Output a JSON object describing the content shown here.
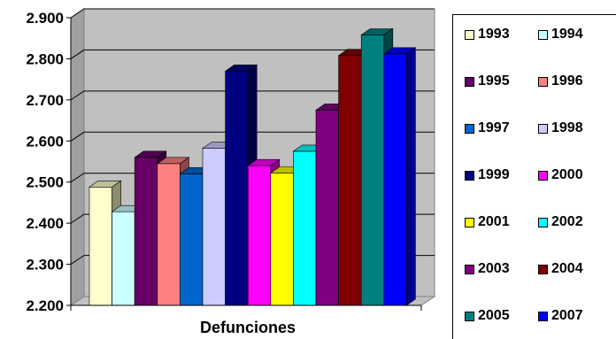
{
  "chart_data": {
    "type": "bar",
    "title": "",
    "xlabel": "Defunciones",
    "ylabel": "",
    "categories": [
      "Defunciones"
    ],
    "ylim": [
      2200,
      2900
    ],
    "y_ticks": [
      2200,
      2300,
      2400,
      2500,
      2600,
      2700,
      2800,
      2900
    ],
    "y_tick_labels": [
      "2.200",
      "2.300",
      "2.400",
      "2.500",
      "2.600",
      "2.700",
      "2.800",
      "2.900"
    ],
    "grid": true,
    "legend_position": "right",
    "series": [
      {
        "name": "1993",
        "values": [
          2488
        ],
        "color": "#FFFFCC"
      },
      {
        "name": "1994",
        "values": [
          2428
        ],
        "color": "#CCFFFF"
      },
      {
        "name": "1995",
        "values": [
          2560
        ],
        "color": "#660066"
      },
      {
        "name": "1996",
        "values": [
          2545
        ],
        "color": "#FF8080"
      },
      {
        "name": "1997",
        "values": [
          2520
        ],
        "color": "#0066CC"
      },
      {
        "name": "1998",
        "values": [
          2582
        ],
        "color": "#CCCCFF"
      },
      {
        "name": "1999",
        "values": [
          2770
        ],
        "color": "#000080"
      },
      {
        "name": "2000",
        "values": [
          2540
        ],
        "color": "#FF00FF"
      },
      {
        "name": "2001",
        "values": [
          2522
        ],
        "color": "#FFFF00"
      },
      {
        "name": "2002",
        "values": [
          2575
        ],
        "color": "#00FFFF"
      },
      {
        "name": "2003",
        "values": [
          2675
        ],
        "color": "#800080"
      },
      {
        "name": "2004",
        "values": [
          2808
        ],
        "color": "#800000"
      },
      {
        "name": "2005",
        "values": [
          2858
        ],
        "color": "#008080"
      },
      {
        "name": "2007",
        "values": [
          2812
        ],
        "color": "#0000FF"
      }
    ]
  }
}
